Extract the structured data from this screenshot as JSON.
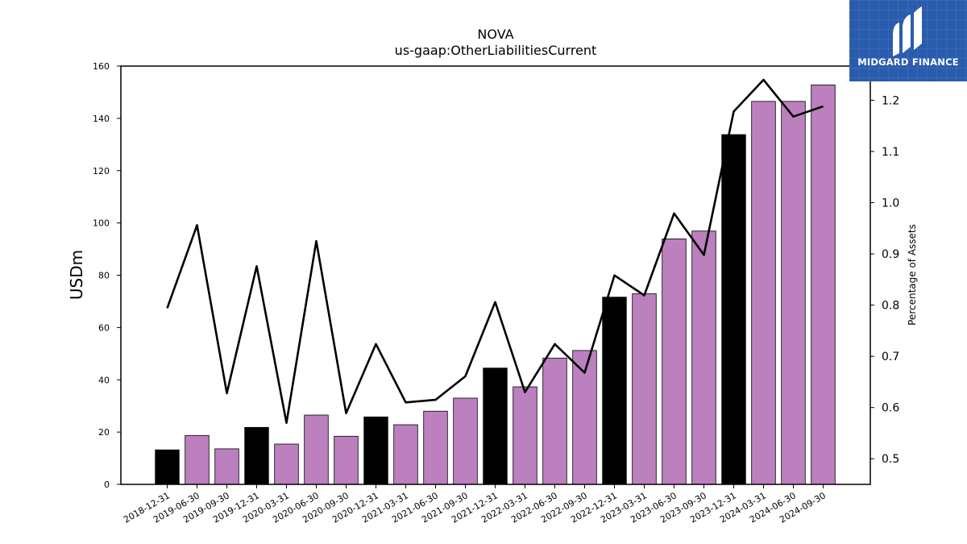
{
  "logo": {
    "text": "MIDGARD FINANCE"
  },
  "chart_data": {
    "type": "bar",
    "title": "NOVA",
    "subtitle": "us-gaap:OtherLiabilitiesCurrent",
    "ylabel": "USDm",
    "y2label": "Percentage of Assets",
    "ylim": [
      0,
      160
    ],
    "y2lim": [
      0.45,
      1.2667
    ],
    "yticks": [
      0,
      20,
      40,
      60,
      80,
      100,
      120,
      140,
      160
    ],
    "y2ticks": [
      0.5,
      0.6,
      0.7,
      0.8,
      0.9,
      1.0,
      1.1,
      1.2
    ],
    "y2tick_labels": [
      "0.5",
      "0.6",
      "0.7",
      "0.8",
      "0.9",
      "1.0",
      "1.1",
      "1.2"
    ],
    "categories": [
      "2018-12-31",
      "2019-06-30",
      "2019-09-30",
      "2019-12-31",
      "2020-03-31",
      "2020-06-30",
      "2020-09-30",
      "2020-12-31",
      "2021-03-31",
      "2021-06-30",
      "2021-09-30",
      "2021-12-31",
      "2022-03-31",
      "2022-06-30",
      "2022-09-30",
      "2022-12-31",
      "2023-03-31",
      "2023-06-30",
      "2023-09-30",
      "2023-12-31",
      "2024-03-31",
      "2024-06-30",
      "2024-09-30"
    ],
    "series": [
      {
        "type": "bar",
        "values": [
          13.2,
          18.7,
          13.6,
          21.8,
          15.4,
          26.5,
          18.4,
          25.8,
          22.8,
          28.0,
          33.0,
          44.5,
          37.3,
          48.3,
          51.2,
          71.6,
          72.9,
          93.9,
          96.9,
          133.8,
          146.5,
          146.5,
          152.8
        ],
        "colors": [
          "#000000",
          "#bb80bd",
          "#bb80bd",
          "#000000",
          "#bb80bd",
          "#bb80bd",
          "#bb80bd",
          "#000000",
          "#bb80bd",
          "#bb80bd",
          "#bb80bd",
          "#000000",
          "#bb80bd",
          "#bb80bd",
          "#bb80bd",
          "#000000",
          "#bb80bd",
          "#bb80bd",
          "#bb80bd",
          "#000000",
          "#bb80bd",
          "#bb80bd",
          "#bb80bd"
        ]
      },
      {
        "type": "line",
        "axis": "right",
        "color": "#000000",
        "values": [
          0.794,
          0.956,
          0.628,
          0.876,
          0.57,
          0.925,
          0.589,
          0.724,
          0.61,
          0.615,
          0.661,
          0.806,
          0.63,
          0.724,
          0.668,
          0.858,
          0.819,
          0.979,
          0.898,
          1.178,
          1.24,
          1.168,
          1.188
        ]
      }
    ],
    "colors": {
      "annual_bar": "#000000",
      "quarter_bar": "#bb80bd",
      "line": "#000000"
    },
    "grid": false,
    "legend": "none"
  }
}
